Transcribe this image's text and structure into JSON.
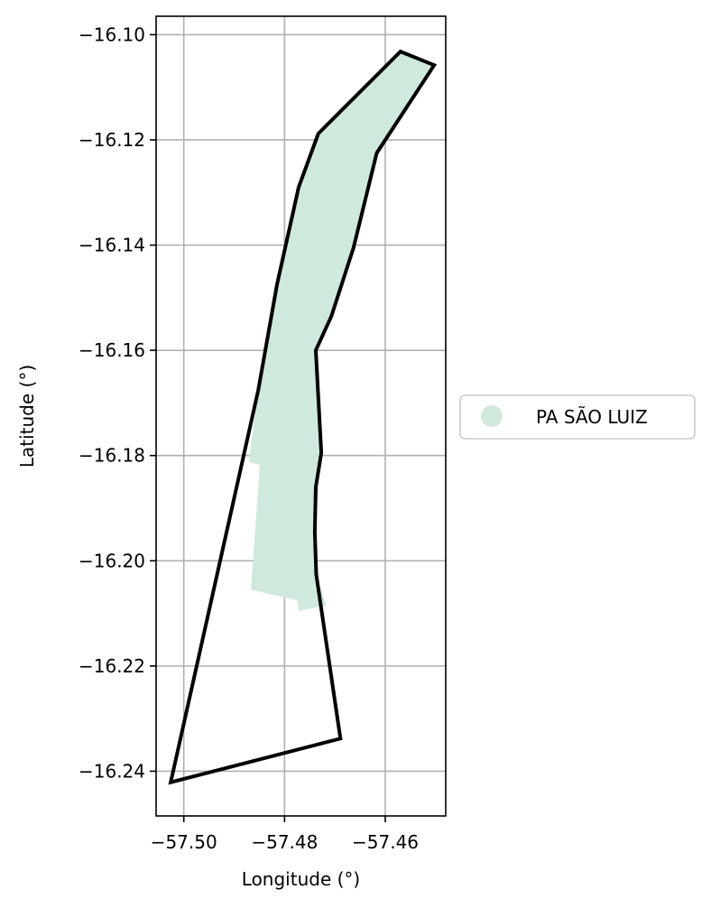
{
  "chart_data": {
    "type": "map",
    "title": "",
    "xlabel": "Longitude (°)",
    "ylabel": "Latitude (°)",
    "xlim": [
      -57.5055,
      -57.448
    ],
    "ylim": [
      -16.2485,
      -16.0965
    ],
    "xticks": [
      -57.5,
      -57.48,
      -57.46
    ],
    "xtick_labels": [
      "−57.50",
      "−57.48",
      "−57.46"
    ],
    "yticks": [
      -16.1,
      -16.12,
      -16.14,
      -16.16,
      -16.18,
      -16.2,
      -16.22,
      -16.24
    ],
    "ytick_labels": [
      "−16.10",
      "−16.12",
      "−16.14",
      "−16.16",
      "−16.18",
      "−16.20",
      "−16.22",
      "−16.24"
    ],
    "grid": true,
    "legend": {
      "placement": "outside-right",
      "entries": [
        {
          "label": "PA SÃO LUIZ",
          "color": "#cfeadc"
        }
      ]
    },
    "fill_polygon": {
      "name": "PA SÃO LUIZ",
      "color": "#cfeadc",
      "coordinates": [
        [
          -57.457,
          -16.1032
        ],
        [
          -57.4503,
          -16.1058
        ],
        [
          -57.4617,
          -16.1225
        ],
        [
          -57.4663,
          -16.1405
        ],
        [
          -57.4707,
          -16.1535
        ],
        [
          -57.4738,
          -16.16
        ],
        [
          -57.4727,
          -16.1795
        ],
        [
          -57.4738,
          -16.186
        ],
        [
          -57.474,
          -16.1945
        ],
        [
          -57.4737,
          -16.2026
        ],
        [
          -57.4717,
          -16.2085
        ],
        [
          -57.4772,
          -16.2095
        ],
        [
          -57.4775,
          -16.2075
        ],
        [
          -57.4867,
          -16.2055
        ],
        [
          -57.4849,
          -16.1818
        ],
        [
          -57.4871,
          -16.1812
        ],
        [
          -57.4852,
          -16.1675
        ],
        [
          -57.4815,
          -16.1475
        ],
        [
          -57.4772,
          -16.129
        ],
        [
          -57.4733,
          -16.1188
        ]
      ]
    },
    "outline_polygon": {
      "color": "#000000",
      "coordinates": [
        [
          -57.4733,
          -16.1188
        ],
        [
          -57.457,
          -16.1032
        ],
        [
          -57.4503,
          -16.1058
        ],
        [
          -57.4617,
          -16.1225
        ],
        [
          -57.4663,
          -16.1405
        ],
        [
          -57.4707,
          -16.1535
        ],
        [
          -57.4738,
          -16.16
        ],
        [
          -57.4727,
          -16.1795
        ],
        [
          -57.4738,
          -16.186
        ],
        [
          -57.474,
          -16.1945
        ],
        [
          -57.4737,
          -16.2026
        ],
        [
          -57.4689,
          -16.2338
        ],
        [
          -57.5026,
          -16.2421
        ],
        [
          -57.4852,
          -16.1675
        ],
        [
          -57.4815,
          -16.1475
        ],
        [
          -57.4772,
          -16.129
        ]
      ]
    }
  }
}
